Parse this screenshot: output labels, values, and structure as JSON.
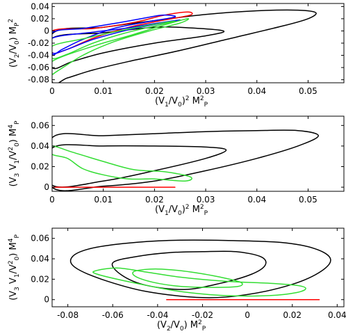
{
  "chart_data": [
    {
      "type": "line",
      "xlabel": "(V1/V0)2 M2P",
      "ylabel": "(V2/V0) MP2",
      "xlim": [
        0,
        0.057
      ],
      "ylim": [
        -0.085,
        0.045
      ],
      "xticks": [
        "0",
        "0.01",
        "0.02",
        "0.03",
        "0.04",
        "0.05"
      ],
      "xtick_values": [
        0,
        0.01,
        0.02,
        0.03,
        0.04,
        0.05
      ],
      "yticks": [
        "0.04",
        "0.02",
        "0",
        "-0.02",
        "-0.04",
        "-0.06",
        "-0.08"
      ],
      "ytick_values": [
        0.04,
        0.02,
        0,
        -0.02,
        -0.04,
        -0.06,
        -0.08
      ],
      "series": [
        {
          "color": "#000000",
          "closed": true,
          "points": [
            [
              0.0,
              -0.005
            ],
            [
              0.01,
              0.006
            ],
            [
              0.02,
              0.017
            ],
            [
              0.03,
              0.027
            ],
            [
              0.04,
              0.033
            ],
            [
              0.048,
              0.034
            ],
            [
              0.0515,
              0.03
            ],
            [
              0.05,
              0.02
            ],
            [
              0.045,
              0.008
            ],
            [
              0.035,
              -0.012
            ],
            [
              0.025,
              -0.032
            ],
            [
              0.015,
              -0.05
            ],
            [
              0.008,
              -0.064
            ],
            [
              0.003,
              -0.077
            ],
            [
              0.0,
              -0.083
            ]
          ]
        },
        {
          "color": "#000000",
          "closed": true,
          "points": [
            [
              0.0,
              -0.012
            ],
            [
              0.01,
              -0.003
            ],
            [
              0.02,
              0.006
            ],
            [
              0.027,
              0.005
            ],
            [
              0.0335,
              0.0
            ],
            [
              0.03,
              -0.008
            ],
            [
              0.02,
              -0.02
            ],
            [
              0.01,
              -0.036
            ],
            [
              0.004,
              -0.05
            ],
            [
              0.0,
              -0.06
            ]
          ]
        },
        {
          "color": "#ff0000",
          "closed": true,
          "points": [
            [
              0.0,
              0.0
            ],
            [
              0.008,
              0.004
            ],
            [
              0.016,
              0.014
            ],
            [
              0.022,
              0.026
            ],
            [
              0.0265,
              0.031
            ],
            [
              0.027,
              0.026
            ],
            [
              0.022,
              0.018
            ],
            [
              0.015,
              0.006
            ],
            [
              0.008,
              -0.012
            ],
            [
              0.003,
              -0.03
            ],
            [
              0.0,
              -0.035
            ]
          ]
        },
        {
          "color": "#0000ff",
          "closed": true,
          "points": [
            [
              0.0,
              -0.003
            ],
            [
              0.006,
              0.004
            ],
            [
              0.012,
              0.012
            ],
            [
              0.018,
              0.021
            ],
            [
              0.0215,
              0.026
            ],
            [
              0.024,
              0.023
            ],
            [
              0.018,
              0.014
            ],
            [
              0.012,
              0.004
            ],
            [
              0.006,
              -0.014
            ],
            [
              0.002,
              -0.03
            ],
            [
              0.0,
              -0.038
            ]
          ]
        },
        {
          "color": "#0000ff",
          "closed": true,
          "points": [
            [
              0.0,
              -0.012
            ],
            [
              0.008,
              -0.002
            ],
            [
              0.014,
              0.004
            ],
            [
              0.02,
              0.012
            ],
            [
              0.025,
              0.018
            ],
            [
              0.021,
              0.012
            ],
            [
              0.015,
              0.002
            ],
            [
              0.008,
              -0.014
            ],
            [
              0.003,
              -0.03
            ],
            [
              0.0,
              -0.036
            ]
          ]
        },
        {
          "color": "#33dd33",
          "closed": true,
          "points": [
            [
              0.0,
              -0.05
            ],
            [
              0.008,
              -0.025
            ],
            [
              0.015,
              -0.008
            ],
            [
              0.022,
              0.01
            ],
            [
              0.0265,
              0.02
            ],
            [
              0.025,
              0.013
            ],
            [
              0.019,
              0.0
            ],
            [
              0.012,
              -0.018
            ],
            [
              0.006,
              -0.04
            ],
            [
              0.001,
              -0.066
            ],
            [
              0.0,
              -0.07
            ]
          ]
        },
        {
          "color": "#33dd33",
          "closed": true,
          "points": [
            [
              0.0,
              -0.025
            ],
            [
              0.006,
              -0.013
            ],
            [
              0.012,
              -0.002
            ],
            [
              0.018,
              0.008
            ],
            [
              0.024,
              0.016
            ],
            [
              0.02,
              0.008
            ],
            [
              0.014,
              -0.004
            ],
            [
              0.008,
              -0.02
            ],
            [
              0.003,
              -0.038
            ],
            [
              0.0,
              -0.045
            ]
          ]
        }
      ]
    },
    {
      "type": "line",
      "xlabel": "(V1/V0)2 M2P",
      "ylabel": "(V3 V1/V20) M4P",
      "xlim": [
        0,
        0.057
      ],
      "ylim": [
        -0.004,
        0.069
      ],
      "xticks": [
        "0",
        "0.01",
        "0.02",
        "0.03",
        "0.04",
        "0.05"
      ],
      "xtick_values": [
        0,
        0.01,
        0.02,
        0.03,
        0.04,
        0.05
      ],
      "yticks": [
        "0.06",
        "0.04",
        "0.02",
        "0"
      ],
      "ytick_values": [
        0.06,
        0.04,
        0.02,
        0
      ],
      "series": [
        {
          "color": "#000000",
          "closed": true,
          "points": [
            [
              0.0,
              0.048
            ],
            [
              0.01,
              0.05
            ],
            [
              0.02,
              0.052
            ],
            [
              0.03,
              0.054
            ],
            [
              0.04,
              0.055
            ],
            [
              0.048,
              0.055
            ],
            [
              0.052,
              0.05
            ],
            [
              0.048,
              0.04
            ],
            [
              0.04,
              0.028
            ],
            [
              0.03,
              0.016
            ],
            [
              0.02,
              0.006
            ],
            [
              0.01,
              0.001
            ],
            [
              0.0,
              0.0
            ]
          ]
        },
        {
          "color": "#000000",
          "closed": true,
          "points": [
            [
              0.0,
              0.038
            ],
            [
              0.01,
              0.04
            ],
            [
              0.02,
              0.04
            ],
            [
              0.03,
              0.039
            ],
            [
              0.034,
              0.036
            ],
            [
              0.03,
              0.028
            ],
            [
              0.02,
              0.016
            ],
            [
              0.01,
              0.006
            ],
            [
              0.0,
              0.002
            ]
          ]
        },
        {
          "color": "#33dd33",
          "closed": true,
          "points": [
            [
              0.0,
              0.04
            ],
            [
              0.004,
              0.034
            ],
            [
              0.01,
              0.025
            ],
            [
              0.016,
              0.017
            ],
            [
              0.022,
              0.015
            ],
            [
              0.027,
              0.01
            ],
            [
              0.026,
              0.006
            ],
            [
              0.02,
              0.008
            ],
            [
              0.015,
              0.008
            ],
            [
              0.01,
              0.012
            ],
            [
              0.006,
              0.018
            ],
            [
              0.003,
              0.028
            ],
            [
              0.0,
              0.032
            ]
          ]
        },
        {
          "color": "#ff0000",
          "closed": false,
          "points": [
            [
              0.0,
              0.0
            ],
            [
              0.024,
              0.0
            ]
          ]
        }
      ]
    },
    {
      "type": "line",
      "xlabel": "(V2/V0) M2P",
      "ylabel": "(V3 V1/V20) M4P",
      "xlim": [
        -0.087,
        0.043
      ],
      "ylim": [
        -0.007,
        0.07
      ],
      "xticks": [
        "-0.08",
        "-0.06",
        "-0.04",
        "-0.02",
        "0",
        "0.02",
        "0.04"
      ],
      "xtick_values": [
        -0.08,
        -0.06,
        -0.04,
        -0.02,
        0,
        0.02,
        0.04
      ],
      "yticks": [
        "0.06",
        "0.04",
        "0.02",
        "0"
      ],
      "ytick_values": [
        0.06,
        0.04,
        0.02,
        0
      ],
      "series": [
        {
          "color": "#000000",
          "closed": true,
          "points": [
            [
              -0.078,
              0.042
            ],
            [
              -0.07,
              0.05
            ],
            [
              -0.055,
              0.055
            ],
            [
              -0.035,
              0.058
            ],
            [
              -0.01,
              0.058
            ],
            [
              0.015,
              0.056
            ],
            [
              0.03,
              0.05
            ],
            [
              0.037,
              0.04
            ],
            [
              0.033,
              0.028
            ],
            [
              0.02,
              0.015
            ],
            [
              0.0,
              0.005
            ],
            [
              -0.02,
              0.002
            ],
            [
              -0.045,
              0.008
            ],
            [
              -0.065,
              0.02
            ],
            [
              -0.077,
              0.032
            ]
          ]
        },
        {
          "color": "#000000",
          "closed": true,
          "points": [
            [
              -0.06,
              0.036
            ],
            [
              -0.05,
              0.042
            ],
            [
              -0.035,
              0.046
            ],
            [
              -0.02,
              0.047
            ],
            [
              -0.005,
              0.047
            ],
            [
              0.006,
              0.042
            ],
            [
              0.008,
              0.034
            ],
            [
              0.002,
              0.025
            ],
            [
              -0.012,
              0.016
            ],
            [
              -0.028,
              0.01
            ],
            [
              -0.045,
              0.014
            ],
            [
              -0.056,
              0.024
            ]
          ]
        },
        {
          "color": "#33dd33",
          "closed": true,
          "points": [
            [
              -0.068,
              0.028
            ],
            [
              -0.058,
              0.031
            ],
            [
              -0.045,
              0.027
            ],
            [
              -0.03,
              0.022
            ],
            [
              -0.01,
              0.018
            ],
            [
              0.01,
              0.016
            ],
            [
              0.022,
              0.014
            ],
            [
              0.026,
              0.011
            ],
            [
              0.022,
              0.007
            ],
            [
              0.01,
              0.004
            ],
            [
              -0.01,
              0.004
            ],
            [
              -0.03,
              0.008
            ],
            [
              -0.045,
              0.014
            ],
            [
              -0.058,
              0.02
            ],
            [
              -0.067,
              0.025
            ]
          ]
        },
        {
          "color": "#33dd33",
          "closed": true,
          "points": [
            [
              -0.05,
              0.028
            ],
            [
              -0.04,
              0.03
            ],
            [
              -0.025,
              0.027
            ],
            [
              -0.012,
              0.022
            ],
            [
              -0.003,
              0.017
            ],
            [
              -0.004,
              0.013
            ],
            [
              -0.015,
              0.012
            ],
            [
              -0.03,
              0.013
            ],
            [
              -0.042,
              0.017
            ],
            [
              -0.05,
              0.023
            ]
          ]
        },
        {
          "color": "#ff0000",
          "closed": false,
          "points": [
            [
              -0.036,
              0.0
            ],
            [
              0.032,
              0.0
            ]
          ]
        }
      ]
    }
  ]
}
